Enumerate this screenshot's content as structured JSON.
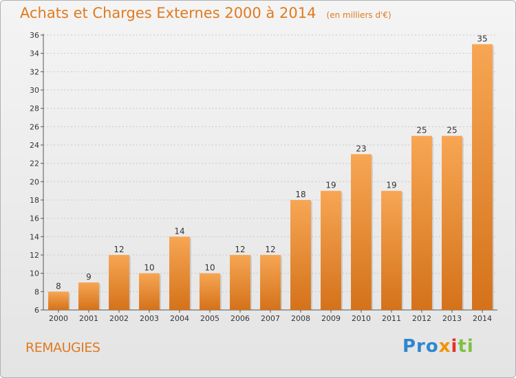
{
  "header": {
    "title": "Achats et Charges Externes 2000 à 2014",
    "subtitle": "(en milliers d'€)"
  },
  "footer": {
    "commune": "REMAUGIES",
    "logo_text": "Proxiti"
  },
  "colors": {
    "bar_light": "#f7a654",
    "bar_dark": "#d4721a",
    "title": "#e07a1f"
  },
  "chart_data": {
    "type": "bar",
    "title": "Achats et Charges Externes 2000 à 2014",
    "subtitle": "(en milliers d'€)",
    "categories": [
      "2000",
      "2001",
      "2002",
      "2003",
      "2004",
      "2005",
      "2006",
      "2007",
      "2008",
      "2009",
      "2010",
      "2011",
      "2012",
      "2013",
      "2014"
    ],
    "values": [
      8,
      9,
      12,
      10,
      14,
      10,
      12,
      12,
      18,
      19,
      23,
      19,
      25,
      25,
      35
    ],
    "ylim": [
      6,
      36
    ],
    "yticks": [
      6,
      8,
      10,
      12,
      14,
      16,
      18,
      20,
      22,
      24,
      26,
      28,
      30,
      32,
      34,
      36
    ],
    "grid": true,
    "data_labels": true
  }
}
